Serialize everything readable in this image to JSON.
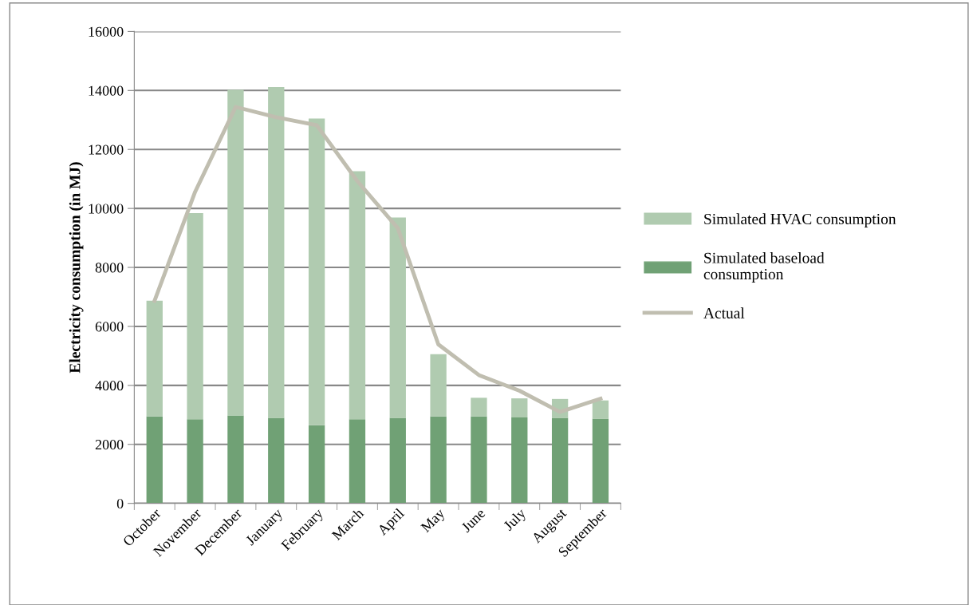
{
  "chart_data": {
    "type": "bar",
    "stacked": true,
    "ylabel": "Electricity consumption (in MJ)",
    "categories": [
      "October",
      "November",
      "December",
      "January",
      "February",
      "March",
      "April",
      "May",
      "June",
      "July",
      "August",
      "September"
    ],
    "series": [
      {
        "name": "Simulated baseload\nconsumption",
        "color": "#70a175",
        "values": [
          2950,
          2850,
          2980,
          2900,
          2650,
          2850,
          2900,
          2950,
          2950,
          2910,
          2900,
          2870
        ]
      },
      {
        "name": "Simulated HVAC consumption",
        "color": "#b0cbb0",
        "values": [
          3920,
          6990,
          11040,
          11220,
          10400,
          8410,
          6790,
          2110,
          630,
          650,
          640,
          620
        ]
      },
      {
        "name": "Actual",
        "type": "line",
        "color": "#c0beb0",
        "values": [
          6870,
          10560,
          13440,
          13090,
          12820,
          10930,
          9330,
          5390,
          4350,
          3820,
          3100,
          3550
        ]
      }
    ],
    "ylim": [
      0,
      16000
    ],
    "yticks": [
      0,
      2000,
      4000,
      6000,
      8000,
      10000,
      12000,
      14000,
      16000
    ],
    "grid": "y",
    "legend": "right"
  }
}
